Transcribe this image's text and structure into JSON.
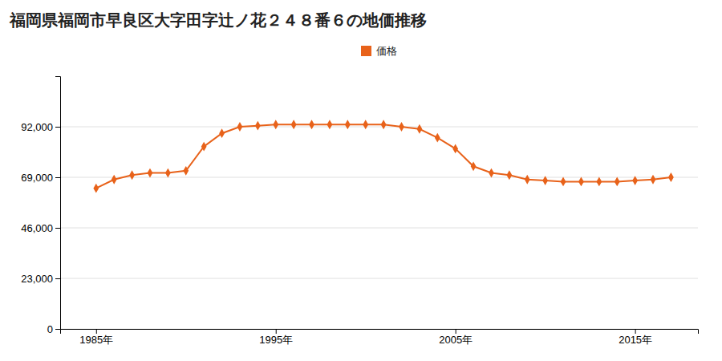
{
  "chart_data": {
    "type": "line",
    "title": "福岡県福岡市早良区大字田字辻ノ花２４８番６の地価推移",
    "x": [
      1985,
      1986,
      1987,
      1988,
      1989,
      1990,
      1991,
      1992,
      1993,
      1994,
      1995,
      1996,
      1997,
      1998,
      1999,
      2000,
      2001,
      2002,
      2003,
      2004,
      2005,
      2006,
      2007,
      2008,
      2009,
      2010,
      2011,
      2012,
      2013,
      2014,
      2015,
      2016,
      2017
    ],
    "series": [
      {
        "name": "価格",
        "color": "#e8621a",
        "marker": "diamond",
        "line_style": "solid",
        "values": [
          64000,
          68000,
          70000,
          71000,
          71000,
          72000,
          83000,
          89000,
          92000,
          92500,
          93000,
          93000,
          93000,
          93000,
          93000,
          93000,
          93000,
          92000,
          91000,
          87000,
          82000,
          74000,
          71000,
          70000,
          68000,
          67500,
          67000,
          67000,
          67000,
          67000,
          67500,
          68000,
          69000
        ]
      }
    ],
    "xlim": [
      1983.0,
      2018.5
    ],
    "xticks": [
      {
        "value": 1985,
        "label": "1985年"
      },
      {
        "value": 1995,
        "label": "1995年"
      },
      {
        "value": 2005,
        "label": "2005年"
      },
      {
        "value": 2015,
        "label": "2015年"
      }
    ],
    "ylim": [
      0,
      115000
    ],
    "yticks": [
      0,
      {
        "value": 23000,
        "label": "23,000"
      },
      {
        "value": 46000,
        "label": "46,000"
      },
      {
        "value": 69000,
        "label": "69,000"
      },
      {
        "value": 92000,
        "label": "92,000"
      }
    ],
    "grid": true,
    "legend": "top"
  }
}
